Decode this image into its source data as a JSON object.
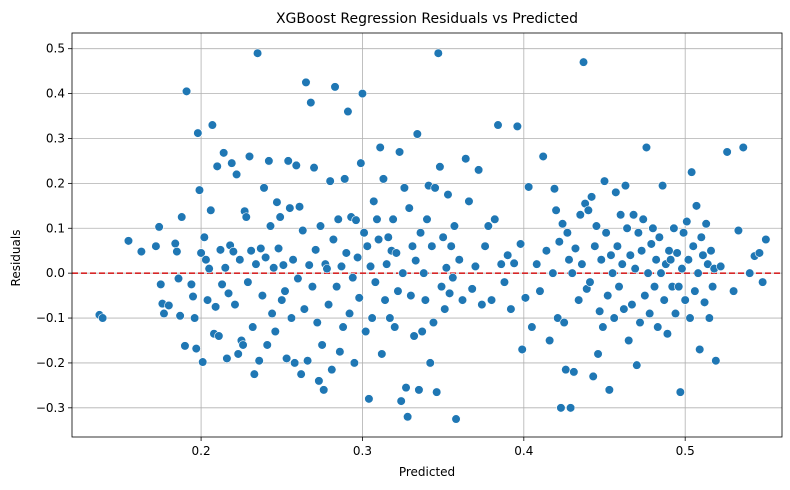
{
  "chart_data": {
    "type": "scatter",
    "title": "XGBoost Regression Residuals vs Predicted",
    "xlabel": "Predicted",
    "ylabel": "Residuals",
    "xlim": [
      0.12,
      0.56
    ],
    "ylim": [
      -0.365,
      0.535
    ],
    "xticks": [
      0.2,
      0.3,
      0.4,
      0.5
    ],
    "xtick_labels": [
      "0.2",
      "0.3",
      "0.4",
      "0.5"
    ],
    "yticks": [
      -0.3,
      -0.2,
      -0.1,
      0.0,
      0.1,
      0.2,
      0.3,
      0.4,
      0.5
    ],
    "ytick_labels": [
      "−0.3",
      "−0.2",
      "−0.1",
      "0.0",
      "0.1",
      "0.2",
      "0.3",
      "0.4",
      "0.5"
    ],
    "grid": true,
    "reference_line": {
      "y": 0.0,
      "style": "dashed",
      "color": "#d62728"
    },
    "point_color": "#1f77b4",
    "points": [
      [
        0.137,
        -0.093
      ],
      [
        0.139,
        -0.1
      ],
      [
        0.155,
        0.072
      ],
      [
        0.163,
        0.048
      ],
      [
        0.172,
        0.06
      ],
      [
        0.174,
        0.103
      ],
      [
        0.175,
        -0.025
      ],
      [
        0.176,
        -0.068
      ],
      [
        0.177,
        -0.09
      ],
      [
        0.18,
        -0.072
      ],
      [
        0.184,
        0.066
      ],
      [
        0.185,
        0.048
      ],
      [
        0.186,
        -0.012
      ],
      [
        0.187,
        -0.095
      ],
      [
        0.188,
        0.125
      ],
      [
        0.19,
        -0.162
      ],
      [
        0.191,
        0.405
      ],
      [
        0.194,
        -0.025
      ],
      [
        0.195,
        -0.052
      ],
      [
        0.196,
        -0.1
      ],
      [
        0.197,
        -0.168
      ],
      [
        0.198,
        0.312
      ],
      [
        0.199,
        0.185
      ],
      [
        0.2,
        0.045
      ],
      [
        0.201,
        -0.198
      ],
      [
        0.202,
        0.08
      ],
      [
        0.203,
        0.03
      ],
      [
        0.204,
        -0.06
      ],
      [
        0.205,
        0.01
      ],
      [
        0.206,
        0.14
      ],
      [
        0.207,
        0.33
      ],
      [
        0.208,
        -0.135
      ],
      [
        0.209,
        -0.075
      ],
      [
        0.21,
        0.238
      ],
      [
        0.211,
        -0.14
      ],
      [
        0.212,
        0.052
      ],
      [
        0.213,
        -0.025
      ],
      [
        0.214,
        0.268
      ],
      [
        0.215,
        0.012
      ],
      [
        0.216,
        -0.19
      ],
      [
        0.217,
        -0.045
      ],
      [
        0.218,
        0.062
      ],
      [
        0.219,
        0.245
      ],
      [
        0.22,
        0.048
      ],
      [
        0.221,
        -0.07
      ],
      [
        0.222,
        0.22
      ],
      [
        0.223,
        -0.18
      ],
      [
        0.224,
        0.03
      ],
      [
        0.225,
        -0.15
      ],
      [
        0.226,
        -0.16
      ],
      [
        0.227,
        0.138
      ],
      [
        0.228,
        0.125
      ],
      [
        0.229,
        -0.02
      ],
      [
        0.23,
        0.26
      ],
      [
        0.231,
        0.05
      ],
      [
        0.232,
        -0.12
      ],
      [
        0.233,
        -0.225
      ],
      [
        0.234,
        0.02
      ],
      [
        0.235,
        0.49
      ],
      [
        0.236,
        -0.195
      ],
      [
        0.237,
        0.055
      ],
      [
        0.238,
        -0.05
      ],
      [
        0.239,
        0.19
      ],
      [
        0.24,
        0.035
      ],
      [
        0.241,
        -0.16
      ],
      [
        0.242,
        0.25
      ],
      [
        0.243,
        0.105
      ],
      [
        0.244,
        -0.09
      ],
      [
        0.245,
        0.012
      ],
      [
        0.246,
        -0.13
      ],
      [
        0.247,
        0.158
      ],
      [
        0.248,
        0.055
      ],
      [
        0.249,
        0.125
      ],
      [
        0.25,
        -0.06
      ],
      [
        0.251,
        0.018
      ],
      [
        0.252,
        -0.04
      ],
      [
        0.253,
        -0.19
      ],
      [
        0.254,
        0.25
      ],
      [
        0.255,
        0.145
      ],
      [
        0.256,
        -0.1
      ],
      [
        0.257,
        0.03
      ],
      [
        0.258,
        -0.2
      ],
      [
        0.259,
        0.24
      ],
      [
        0.26,
        -0.012
      ],
      [
        0.261,
        0.148
      ],
      [
        0.262,
        -0.225
      ],
      [
        0.263,
        0.095
      ],
      [
        0.264,
        -0.08
      ],
      [
        0.265,
        0.425
      ],
      [
        0.266,
        -0.195
      ],
      [
        0.267,
        0.018
      ],
      [
        0.268,
        0.38
      ],
      [
        0.269,
        -0.03
      ],
      [
        0.27,
        0.235
      ],
      [
        0.271,
        0.052
      ],
      [
        0.272,
        -0.11
      ],
      [
        0.273,
        -0.24
      ],
      [
        0.274,
        0.105
      ],
      [
        0.275,
        -0.16
      ],
      [
        0.276,
        -0.26
      ],
      [
        0.277,
        0.02
      ],
      [
        0.278,
        0.01
      ],
      [
        0.279,
        -0.07
      ],
      [
        0.28,
        0.205
      ],
      [
        0.281,
        -0.215
      ],
      [
        0.282,
        0.075
      ],
      [
        0.283,
        0.415
      ],
      [
        0.284,
        -0.03
      ],
      [
        0.285,
        0.12
      ],
      [
        0.286,
        -0.175
      ],
      [
        0.287,
        0.015
      ],
      [
        0.288,
        -0.12
      ],
      [
        0.289,
        0.21
      ],
      [
        0.29,
        0.045
      ],
      [
        0.291,
        0.36
      ],
      [
        0.292,
        -0.09
      ],
      [
        0.293,
        0.125
      ],
      [
        0.294,
        -0.01
      ],
      [
        0.295,
        -0.2
      ],
      [
        0.296,
        0.118
      ],
      [
        0.297,
        0.035
      ],
      [
        0.298,
        -0.055
      ],
      [
        0.299,
        0.245
      ],
      [
        0.3,
        0.4
      ],
      [
        0.301,
        0.09
      ],
      [
        0.302,
        -0.13
      ],
      [
        0.303,
        0.06
      ],
      [
        0.304,
        -0.28
      ],
      [
        0.305,
        0.015
      ],
      [
        0.306,
        -0.1
      ],
      [
        0.307,
        0.16
      ],
      [
        0.308,
        -0.02
      ],
      [
        0.309,
        0.12
      ],
      [
        0.31,
        0.075
      ],
      [
        0.311,
        0.28
      ],
      [
        0.312,
        -0.18
      ],
      [
        0.313,
        0.21
      ],
      [
        0.314,
        -0.06
      ],
      [
        0.315,
        0.02
      ],
      [
        0.316,
        0.08
      ],
      [
        0.317,
        -0.1
      ],
      [
        0.318,
        0.05
      ],
      [
        0.319,
        0.12
      ],
      [
        0.32,
        -0.12
      ],
      [
        0.321,
        0.045
      ],
      [
        0.322,
        -0.04
      ],
      [
        0.323,
        0.27
      ],
      [
        0.324,
        -0.285
      ],
      [
        0.325,
        0.0
      ],
      [
        0.326,
        0.19
      ],
      [
        0.327,
        -0.255
      ],
      [
        0.328,
        -0.32
      ],
      [
        0.329,
        0.145
      ],
      [
        0.33,
        -0.05
      ],
      [
        0.331,
        0.06
      ],
      [
        0.332,
        -0.14
      ],
      [
        0.333,
        0.028
      ],
      [
        0.334,
        0.31
      ],
      [
        0.335,
        -0.26
      ],
      [
        0.336,
        0.09
      ],
      [
        0.337,
        -0.13
      ],
      [
        0.338,
        0.0
      ],
      [
        0.339,
        -0.06
      ],
      [
        0.34,
        0.12
      ],
      [
        0.341,
        0.195
      ],
      [
        0.342,
        -0.2
      ],
      [
        0.343,
        0.06
      ],
      [
        0.344,
        -0.11
      ],
      [
        0.345,
        0.19
      ],
      [
        0.346,
        -0.265
      ],
      [
        0.347,
        0.49
      ],
      [
        0.348,
        0.237
      ],
      [
        0.349,
        -0.03
      ],
      [
        0.35,
        0.08
      ],
      [
        0.351,
        -0.08
      ],
      [
        0.352,
        0.012
      ],
      [
        0.353,
        0.175
      ],
      [
        0.354,
        -0.045
      ],
      [
        0.355,
        0.06
      ],
      [
        0.356,
        -0.01
      ],
      [
        0.357,
        0.105
      ],
      [
        0.358,
        -0.325
      ],
      [
        0.36,
        0.03
      ],
      [
        0.362,
        -0.06
      ],
      [
        0.364,
        0.255
      ],
      [
        0.366,
        0.16
      ],
      [
        0.368,
        -0.035
      ],
      [
        0.37,
        0.015
      ],
      [
        0.372,
        0.23
      ],
      [
        0.374,
        -0.07
      ],
      [
        0.376,
        0.06
      ],
      [
        0.378,
        0.105
      ],
      [
        0.38,
        -0.06
      ],
      [
        0.382,
        0.12
      ],
      [
        0.384,
        0.33
      ],
      [
        0.386,
        0.02
      ],
      [
        0.388,
        -0.02
      ],
      [
        0.39,
        0.04
      ],
      [
        0.392,
        -0.08
      ],
      [
        0.394,
        0.022
      ],
      [
        0.396,
        0.327
      ],
      [
        0.398,
        0.065
      ],
      [
        0.399,
        -0.17
      ],
      [
        0.401,
        -0.055
      ],
      [
        0.403,
        0.192
      ],
      [
        0.405,
        -0.12
      ],
      [
        0.408,
        0.02
      ],
      [
        0.41,
        -0.04
      ],
      [
        0.412,
        0.26
      ],
      [
        0.414,
        0.05
      ],
      [
        0.416,
        -0.15
      ],
      [
        0.418,
        0.0
      ],
      [
        0.419,
        0.188
      ],
      [
        0.42,
        0.14
      ],
      [
        0.421,
        -0.1
      ],
      [
        0.422,
        0.07
      ],
      [
        0.423,
        -0.3
      ],
      [
        0.424,
        0.11
      ],
      [
        0.425,
        -0.11
      ],
      [
        0.426,
        -0.215
      ],
      [
        0.427,
        0.09
      ],
      [
        0.428,
        0.03
      ],
      [
        0.429,
        -0.3
      ],
      [
        0.43,
        0.0
      ],
      [
        0.431,
        -0.22
      ],
      [
        0.432,
        0.055
      ],
      [
        0.434,
        -0.06
      ],
      [
        0.435,
        0.13
      ],
      [
        0.436,
        0.02
      ],
      [
        0.437,
        0.47
      ],
      [
        0.438,
        0.155
      ],
      [
        0.439,
        -0.035
      ],
      [
        0.44,
        0.14
      ],
      [
        0.441,
        -0.02
      ],
      [
        0.442,
        0.17
      ],
      [
        0.443,
        -0.23
      ],
      [
        0.444,
        0.06
      ],
      [
        0.445,
        0.105
      ],
      [
        0.446,
        -0.18
      ],
      [
        0.447,
        -0.085
      ],
      [
        0.448,
        0.03
      ],
      [
        0.449,
        -0.12
      ],
      [
        0.45,
        0.205
      ],
      [
        0.451,
        0.09
      ],
      [
        0.452,
        -0.05
      ],
      [
        0.453,
        -0.26
      ],
      [
        0.454,
        0.04
      ],
      [
        0.455,
        0.0
      ],
      [
        0.456,
        -0.1
      ],
      [
        0.457,
        0.18
      ],
      [
        0.458,
        0.06
      ],
      [
        0.459,
        -0.03
      ],
      [
        0.46,
        0.13
      ],
      [
        0.461,
        0.02
      ],
      [
        0.462,
        -0.08
      ],
      [
        0.463,
        0.195
      ],
      [
        0.464,
        0.1
      ],
      [
        0.465,
        -0.15
      ],
      [
        0.466,
        0.04
      ],
      [
        0.467,
        -0.07
      ],
      [
        0.468,
        0.13
      ],
      [
        0.469,
        0.01
      ],
      [
        0.47,
        -0.205
      ],
      [
        0.471,
        0.09
      ],
      [
        0.472,
        -0.11
      ],
      [
        0.473,
        0.05
      ],
      [
        0.474,
        0.12
      ],
      [
        0.475,
        -0.05
      ],
      [
        0.476,
        0.28
      ],
      [
        0.477,
        0.0
      ],
      [
        0.478,
        -0.09
      ],
      [
        0.479,
        0.065
      ],
      [
        0.48,
        0.1
      ],
      [
        0.481,
        -0.03
      ],
      [
        0.482,
        0.03
      ],
      [
        0.483,
        -0.12
      ],
      [
        0.484,
        0.08
      ],
      [
        0.485,
        0.0
      ],
      [
        0.486,
        0.195
      ],
      [
        0.487,
        -0.06
      ],
      [
        0.488,
        0.02
      ],
      [
        0.489,
        -0.135
      ],
      [
        0.49,
        0.05
      ],
      [
        0.491,
        0.03
      ],
      [
        0.492,
        -0.03
      ],
      [
        0.493,
        0.1
      ],
      [
        0.494,
        -0.09
      ],
      [
        0.495,
        0.045
      ],
      [
        0.496,
        -0.03
      ],
      [
        0.497,
        -0.265
      ],
      [
        0.498,
        0.01
      ],
      [
        0.499,
        0.09
      ],
      [
        0.5,
        -0.06
      ],
      [
        0.501,
        0.115
      ],
      [
        0.502,
        0.03
      ],
      [
        0.503,
        -0.1
      ],
      [
        0.504,
        0.225
      ],
      [
        0.505,
        0.06
      ],
      [
        0.506,
        -0.04
      ],
      [
        0.507,
        0.15
      ],
      [
        0.508,
        0.0
      ],
      [
        0.509,
        -0.17
      ],
      [
        0.51,
        0.08
      ],
      [
        0.511,
        0.04
      ],
      [
        0.512,
        -0.065
      ],
      [
        0.513,
        0.11
      ],
      [
        0.514,
        0.02
      ],
      [
        0.515,
        -0.1
      ],
      [
        0.516,
        0.05
      ],
      [
        0.517,
        -0.03
      ],
      [
        0.518,
        0.01
      ],
      [
        0.519,
        -0.195
      ],
      [
        0.522,
        0.015
      ],
      [
        0.526,
        0.27
      ],
      [
        0.53,
        -0.04
      ],
      [
        0.533,
        0.095
      ],
      [
        0.536,
        0.28
      ],
      [
        0.54,
        0.0
      ],
      [
        0.543,
        0.038
      ],
      [
        0.546,
        0.045
      ],
      [
        0.548,
        -0.02
      ],
      [
        0.55,
        0.075
      ]
    ]
  }
}
